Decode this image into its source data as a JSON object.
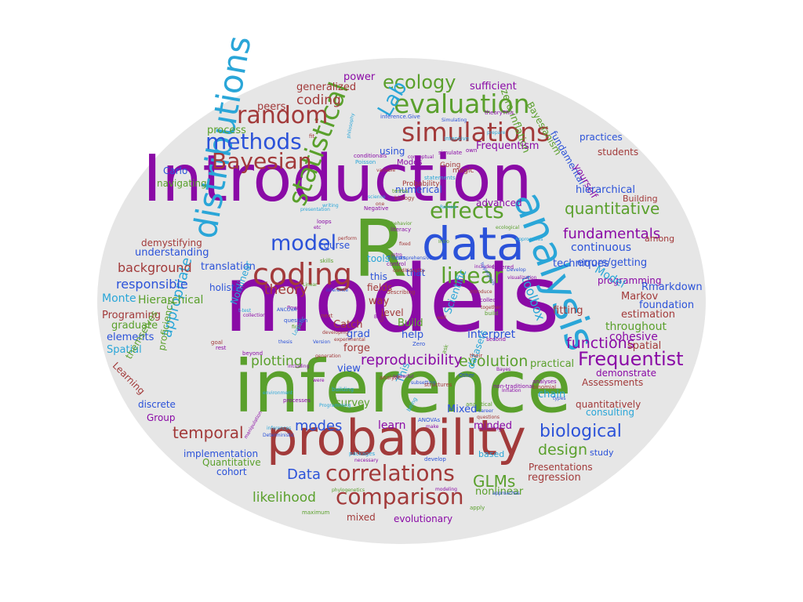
{
  "colors": {
    "background": "#e6e6e6",
    "purple": "#8a0aa6",
    "green": "#5aa02c",
    "blue": "#2b52d9",
    "brown": "#a23a3a",
    "cyan": "#2aa6d8"
  },
  "words": [
    {
      "text": "models",
      "color": "purple"
    },
    {
      "text": "inference",
      "color": "green"
    },
    {
      "text": "Introduction",
      "color": "purple"
    },
    {
      "text": "R",
      "color": "green"
    },
    {
      "text": "probability",
      "color": "brown"
    },
    {
      "text": "data",
      "color": "blue"
    },
    {
      "text": "analysis",
      "color": "cyan"
    },
    {
      "text": "distributions",
      "color": "cyan"
    },
    {
      "text": "statistical",
      "color": "green"
    },
    {
      "text": "coding",
      "color": "brown"
    },
    {
      "text": "simulations",
      "color": "brown"
    },
    {
      "text": "evaluation",
      "color": "green"
    },
    {
      "text": "random",
      "color": "brown"
    },
    {
      "text": "methods",
      "color": "blue"
    },
    {
      "text": "Bayesian",
      "color": "brown"
    },
    {
      "text": "model",
      "color": "blue"
    },
    {
      "text": "effects",
      "color": "green"
    },
    {
      "text": "linear",
      "color": "green"
    },
    {
      "text": "correlations",
      "color": "brown"
    },
    {
      "text": "comparison",
      "color": "brown"
    },
    {
      "text": "Frequentist",
      "color": "purple"
    },
    {
      "text": "biological",
      "color": "blue"
    },
    {
      "text": "ecology",
      "color": "green"
    },
    {
      "text": "Lab",
      "color": "cyan"
    },
    {
      "text": "quantitative",
      "color": "green"
    },
    {
      "text": "fundamentals",
      "color": "purple"
    },
    {
      "text": "reproducibility",
      "color": "purple"
    },
    {
      "text": "evolution",
      "color": "green"
    },
    {
      "text": "functions",
      "color": "purple"
    },
    {
      "text": "temporal",
      "color": "brown"
    },
    {
      "text": "plotting",
      "color": "green"
    },
    {
      "text": "appropriate",
      "color": "cyan"
    },
    {
      "text": "GLMs",
      "color": "green"
    },
    {
      "text": "likelihood",
      "color": "green"
    },
    {
      "text": "design",
      "color": "green"
    },
    {
      "text": "toolbox",
      "color": "cyan"
    },
    {
      "text": "theory",
      "color": "brown"
    },
    {
      "text": "modes",
      "color": "blue"
    },
    {
      "text": "Data",
      "color": "blue"
    },
    {
      "text": "coding",
      "color": "brown"
    },
    {
      "text": "background",
      "color": "brown"
    },
    {
      "text": "responsible",
      "color": "blue"
    },
    {
      "text": "understanding",
      "color": "blue"
    },
    {
      "text": "translation",
      "color": "blue"
    },
    {
      "text": "Hierarchical",
      "color": "green"
    },
    {
      "text": "Monte",
      "color": "cyan"
    },
    {
      "text": "Carlo",
      "color": "blue"
    },
    {
      "text": "navigating",
      "color": "green"
    },
    {
      "text": "process",
      "color": "green"
    },
    {
      "text": "generalized",
      "color": "brown"
    },
    {
      "text": "power",
      "color": "purple"
    },
    {
      "text": "sufficient",
      "color": "purple"
    },
    {
      "text": "peers",
      "color": "brown"
    },
    {
      "text": "zero-inflation",
      "color": "green"
    },
    {
      "text": "Bayesianism",
      "color": "green"
    },
    {
      "text": "Frequentism",
      "color": "purple"
    },
    {
      "text": "practices",
      "color": "blue"
    },
    {
      "text": "students",
      "color": "brown"
    },
    {
      "text": "fundamental",
      "color": "blue"
    },
    {
      "text": "yourself",
      "color": "purple"
    },
    {
      "text": "hierarchical",
      "color": "blue"
    },
    {
      "text": "Building",
      "color": "brown"
    },
    {
      "text": "advanced",
      "color": "purple"
    },
    {
      "text": "continuous",
      "color": "blue"
    },
    {
      "text": "errors/getting",
      "color": "blue"
    },
    {
      "text": "among",
      "color": "brown"
    },
    {
      "text": "programming",
      "color": "purple"
    },
    {
      "text": "Model",
      "color": "cyan"
    },
    {
      "text": "Rmarkdown",
      "color": "blue"
    },
    {
      "text": "Markov",
      "color": "brown"
    },
    {
      "text": "foundation",
      "color": "blue"
    },
    {
      "text": "estimation",
      "color": "brown"
    },
    {
      "text": "fitting",
      "color": "brown"
    },
    {
      "text": "throughout",
      "color": "green"
    },
    {
      "text": "cohesive",
      "color": "purple"
    },
    {
      "text": "spatial",
      "color": "brown"
    },
    {
      "text": "interpret",
      "color": "blue"
    },
    {
      "text": "practical",
      "color": "green"
    },
    {
      "text": "demonstrate",
      "color": "purple"
    },
    {
      "text": "Assessments",
      "color": "brown"
    },
    {
      "text": "chain",
      "color": "cyan"
    },
    {
      "text": "consulting",
      "color": "cyan"
    },
    {
      "text": "quantitatively",
      "color": "brown"
    },
    {
      "text": "study",
      "color": "blue"
    },
    {
      "text": "regression",
      "color": "brown"
    },
    {
      "text": "Presentations",
      "color": "brown"
    },
    {
      "text": "nonlinear",
      "color": "green"
    },
    {
      "text": "evolutionary",
      "color": "purple"
    },
    {
      "text": "mixed",
      "color": "brown"
    },
    {
      "text": "based",
      "color": "cyan"
    },
    {
      "text": "minded",
      "color": "purple"
    },
    {
      "text": "Mixed",
      "color": "blue"
    },
    {
      "text": "learn",
      "color": "purple"
    },
    {
      "text": "survey",
      "color": "green"
    },
    {
      "text": "This",
      "color": "cyan"
    },
    {
      "text": "Build",
      "color": "green"
    },
    {
      "text": "help",
      "color": "blue"
    },
    {
      "text": "view",
      "color": "blue"
    },
    {
      "text": "forge",
      "color": "brown"
    },
    {
      "text": "grad",
      "color": "blue"
    },
    {
      "text": "Catch",
      "color": "brown"
    },
    {
      "text": "way",
      "color": "brown"
    },
    {
      "text": "fields",
      "color": "brown"
    },
    {
      "text": "this",
      "color": "blue"
    },
    {
      "text": "that",
      "color": "blue"
    },
    {
      "text": "level",
      "color": "brown"
    },
    {
      "text": "tools",
      "color": "cyan"
    },
    {
      "text": "course",
      "color": "blue"
    },
    {
      "text": "using",
      "color": "blue"
    },
    {
      "text": "numerical",
      "color": "blue"
    },
    {
      "text": "Scientific",
      "color": "cyan"
    },
    {
      "text": "datasets",
      "color": "cyan"
    },
    {
      "text": "holistic",
      "color": "blue"
    },
    {
      "text": "Nonlinear",
      "color": "cyan"
    },
    {
      "text": "Programing",
      "color": "brown"
    },
    {
      "text": "graduate",
      "color": "green"
    },
    {
      "text": "elements",
      "color": "blue"
    },
    {
      "text": "proficiency",
      "color": "green"
    },
    {
      "text": "Spatial",
      "color": "cyan"
    },
    {
      "text": "themselves",
      "color": "green"
    },
    {
      "text": "Learning",
      "color": "brown"
    },
    {
      "text": "discrete",
      "color": "blue"
    },
    {
      "text": "Group",
      "color": "purple"
    },
    {
      "text": "implementation",
      "color": "blue"
    },
    {
      "text": "Quantitative",
      "color": "green"
    },
    {
      "text": "cohort",
      "color": "blue"
    },
    {
      "text": "demystifying",
      "color": "brown"
    },
    {
      "text": "techniques",
      "color": "blue"
    },
    {
      "text": "Intensive",
      "color": "cyan"
    },
    {
      "text": "simulate",
      "color": "purple"
    },
    {
      "text": "Going",
      "color": "brown"
    },
    {
      "text": "magic",
      "color": "brown"
    },
    {
      "text": "statements",
      "color": "cyan"
    },
    {
      "text": "Probability",
      "color": "brown"
    },
    {
      "text": "conceptual",
      "color": "purple"
    },
    {
      "text": "Modes",
      "color": "purple"
    },
    {
      "text": "variable",
      "color": "brown"
    },
    {
      "text": "Poisson",
      "color": "cyan"
    },
    {
      "text": "conditionals",
      "color": "purple"
    },
    {
      "text": "Simulating",
      "color": "blue"
    },
    {
      "text": "prepare",
      "color": "cyan"
    },
    {
      "text": "theoryThis",
      "color": "purple"
    },
    {
      "text": "inference.Give",
      "color": "blue"
    },
    {
      "text": "philosophy",
      "color": "cyan"
    },
    {
      "text": "own",
      "color": "purple"
    },
    {
      "text": "terms",
      "color": "green"
    },
    {
      "text": "biology",
      "color": "brown"
    },
    {
      "text": "science",
      "color": "cyan"
    },
    {
      "text": "writing",
      "color": "cyan"
    },
    {
      "text": "presentation",
      "color": "cyan"
    },
    {
      "text": "loops",
      "color": "purple"
    },
    {
      "text": "etc",
      "color": "purple"
    },
    {
      "text": "one",
      "color": "brown"
    },
    {
      "text": "Review",
      "color": "cyan"
    },
    {
      "text": "Approaches",
      "color": "cyan"
    },
    {
      "text": "ecological",
      "color": "green"
    },
    {
      "text": "behavior",
      "color": "green"
    },
    {
      "text": "literacy",
      "color": "purple"
    },
    {
      "text": "perform",
      "color": "brown"
    },
    {
      "text": "Intro",
      "color": "green"
    },
    {
      "text": "fixed",
      "color": "brown"
    },
    {
      "text": "comprehensive",
      "color": "blue"
    },
    {
      "text": "skills",
      "color": "green"
    },
    {
      "text": "control",
      "color": "purple"
    },
    {
      "text": "conditionality",
      "color": "brown"
    },
    {
      "text": "covered",
      "color": "purple"
    },
    {
      "text": "included",
      "color": "purple"
    },
    {
      "text": "hypothesis",
      "color": "blue"
    },
    {
      "text": "Develop",
      "color": "blue"
    },
    {
      "text": "visualization",
      "color": "purple"
    },
    {
      "text": "Linear",
      "color": "green"
    },
    {
      "text": "inference",
      "color": "blue"
    },
    {
      "text": "Introduce",
      "color": "brown"
    },
    {
      "text": "collect",
      "color": "purple"
    },
    {
      "text": "together",
      "color": "brown"
    },
    {
      "text": "Power",
      "color": "purple"
    },
    {
      "text": "ANCOVA",
      "color": "blue"
    },
    {
      "text": "question",
      "color": "blue"
    },
    {
      "text": "t-test",
      "color": "cyan"
    },
    {
      "text": "collection",
      "color": "purple"
    },
    {
      "text": "first",
      "color": "green"
    },
    {
      "text": "Basic",
      "color": "purple"
    },
    {
      "text": "developing",
      "color": "brown"
    },
    {
      "text": "experimental",
      "color": "brown"
    },
    {
      "text": "Version",
      "color": "blue"
    },
    {
      "text": "Logistic",
      "color": "cyan"
    },
    {
      "text": "thesis",
      "color": "blue"
    },
    {
      "text": "their",
      "color": "brown"
    },
    {
      "text": "Bayes",
      "color": "purple"
    },
    {
      "text": "Other",
      "color": "blue"
    },
    {
      "text": "ask",
      "color": "green"
    },
    {
      "text": "were",
      "color": "purple"
    },
    {
      "text": "building",
      "color": "cyan"
    },
    {
      "text": "powerful",
      "color": "purple"
    },
    {
      "text": "subsetting",
      "color": "blue"
    },
    {
      "text": "analyses",
      "color": "purple"
    },
    {
      "text": "binomial",
      "color": "brown"
    },
    {
      "text": "types",
      "color": "blue"
    },
    {
      "text": "analytical",
      "color": "green"
    },
    {
      "text": "career",
      "color": "blue"
    },
    {
      "text": "questions",
      "color": "brown"
    },
    {
      "text": "Revisiting",
      "color": "purple"
    },
    {
      "text": "ANOVAs",
      "color": "blue"
    },
    {
      "text": "make",
      "color": "purple"
    },
    {
      "text": "being",
      "color": "cyan"
    },
    {
      "text": "Programming",
      "color": "cyan"
    },
    {
      "text": "processes",
      "color": "purple"
    },
    {
      "text": "environment",
      "color": "cyan"
    },
    {
      "text": "inferences",
      "color": "cyan"
    },
    {
      "text": "Deterministic",
      "color": "blue"
    },
    {
      "text": "manipulation",
      "color": "purple"
    },
    {
      "text": "packages",
      "color": "cyan"
    },
    {
      "text": "necessary",
      "color": "purple"
    },
    {
      "text": "develop",
      "color": "blue"
    },
    {
      "text": "modeling",
      "color": "purple"
    },
    {
      "text": "phylogenetics",
      "color": "green"
    },
    {
      "text": "maximum",
      "color": "green"
    },
    {
      "text": "approaches",
      "color": "blue"
    },
    {
      "text": "apply",
      "color": "green"
    },
    {
      "text": "goal",
      "color": "brown"
    },
    {
      "text": "rest",
      "color": "purple"
    },
    {
      "text": "beyond",
      "color": "purple"
    },
    {
      "text": "including",
      "color": "purple"
    },
    {
      "text": "next",
      "color": "brown"
    },
    {
      "text": "second",
      "color": "purple"
    },
    {
      "text": "Inflation",
      "color": "purple"
    },
    {
      "text": "non-traditional",
      "color": "purple"
    },
    {
      "text": "structures",
      "color": "brown"
    },
    {
      "text": "well",
      "color": "brown"
    },
    {
      "text": "build",
      "color": "green"
    },
    {
      "text": "Zero",
      "color": "blue"
    },
    {
      "text": "generation",
      "color": "brown"
    },
    {
      "text": "analyze",
      "color": "brown"
    },
    {
      "text": "GIS",
      "color": "brown"
    },
    {
      "text": "fit",
      "color": "brown"
    },
    {
      "text": "T-tests",
      "color": "blue"
    },
    {
      "text": "describing",
      "color": "brown"
    },
    {
      "text": "Negative",
      "color": "purple"
    },
    {
      "text": "intro",
      "color": "purple"
    }
  ]
}
